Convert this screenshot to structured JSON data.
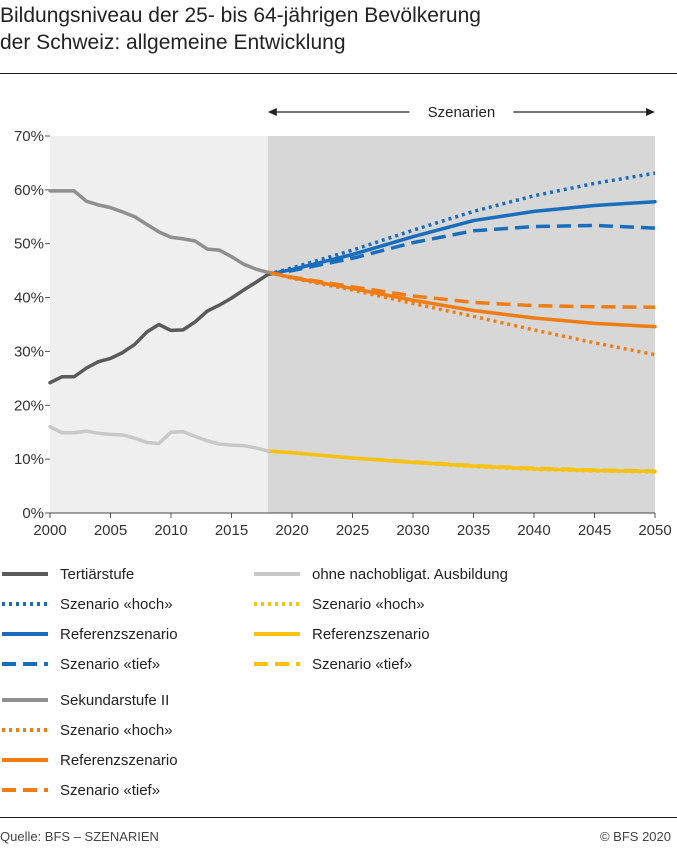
{
  "title_lines": [
    "Bildungsniveau der 25- bis 64-jährigen Bevölkerung",
    "der Schweiz: allgemeine Entwicklung"
  ],
  "source": "Quelle: BFS – SZENARIEN",
  "copyright": "© BFS 2020",
  "colors": {
    "tertiary": "#5a5a5a",
    "secondary": "#8f8f8f",
    "compulsory": "#c8c8c8",
    "blue": "#1a6dbd",
    "orange": "#f07d14",
    "yellow": "#f7c214",
    "historic_bg": "#efefef",
    "scenario_bg": "#d7d7d7"
  },
  "chart_data": {
    "type": "line",
    "x_range": [
      2000,
      2050
    ],
    "ylim": [
      0,
      70
    ],
    "y_ticks": [
      0,
      10,
      20,
      30,
      40,
      50,
      60,
      70
    ],
    "y_tick_labels": [
      "0%",
      "10%",
      "20%",
      "30%",
      "40%",
      "50%",
      "60%",
      "70%"
    ],
    "x_ticks": [
      2000,
      2005,
      2010,
      2015,
      2020,
      2025,
      2030,
      2035,
      2040,
      2045,
      2050
    ],
    "x_tick_labels": [
      "2000",
      "2005",
      "2010",
      "2015",
      "2020",
      "2025",
      "2030",
      "2035",
      "2040",
      "2045",
      "2050"
    ],
    "scenario_start": 2018,
    "scenario_label": "Szenarien",
    "series": [
      {
        "name": "Tertiärstufe",
        "group": "tertiary",
        "style": "solid",
        "x": [
          2000,
          2001,
          2002,
          2003,
          2004,
          2005,
          2006,
          2007,
          2008,
          2009,
          2010,
          2011,
          2012,
          2013,
          2014,
          2015,
          2016,
          2017,
          2018
        ],
        "y": [
          24.2,
          25.3,
          25.3,
          26.9,
          28.1,
          28.7,
          29.8,
          31.3,
          33.6,
          35.0,
          33.9,
          34.0,
          35.5,
          37.5,
          38.6,
          39.9,
          41.4,
          42.8,
          44.3
        ]
      },
      {
        "name": "Szenario «hoch»",
        "group": "tertiary",
        "style": "dotted",
        "x": [
          2018,
          2020,
          2025,
          2030,
          2035,
          2040,
          2045,
          2050
        ],
        "y": [
          44.3,
          45.5,
          48.8,
          52.5,
          56.0,
          58.9,
          61.2,
          63.1
        ]
      },
      {
        "name": "Referenzszenario",
        "group": "tertiary",
        "style": "solid",
        "x": [
          2018,
          2020,
          2025,
          2030,
          2035,
          2040,
          2045,
          2050
        ],
        "y": [
          44.3,
          45.2,
          48.0,
          51.3,
          54.3,
          56.0,
          57.1,
          57.8
        ]
      },
      {
        "name": "Szenario «tief»",
        "group": "tertiary",
        "style": "dashed",
        "x": [
          2018,
          2020,
          2025,
          2030,
          2035,
          2040,
          2045,
          2050
        ],
        "y": [
          44.3,
          45.0,
          47.3,
          50.2,
          52.4,
          53.2,
          53.4,
          52.9
        ]
      },
      {
        "name": "Sekundarstufe II",
        "group": "secondary",
        "style": "solid",
        "x": [
          2000,
          2001,
          2002,
          2003,
          2004,
          2005,
          2006,
          2007,
          2008,
          2009,
          2010,
          2011,
          2012,
          2013,
          2014,
          2015,
          2016,
          2017,
          2018
        ],
        "y": [
          59.8,
          59.8,
          59.8,
          57.9,
          57.2,
          56.7,
          55.9,
          55.0,
          53.6,
          52.2,
          51.2,
          50.9,
          50.5,
          49.0,
          48.8,
          47.6,
          46.2,
          45.3,
          44.7
        ]
      },
      {
        "name": "Szenario «hoch»",
        "group": "secondary",
        "style": "dotted",
        "x": [
          2018,
          2020,
          2025,
          2030,
          2035,
          2040,
          2045,
          2050
        ],
        "y": [
          44.7,
          43.6,
          41.4,
          38.9,
          36.5,
          34.0,
          31.6,
          29.4
        ]
      },
      {
        "name": "Referenzszenario",
        "group": "secondary",
        "style": "solid",
        "x": [
          2018,
          2020,
          2025,
          2030,
          2035,
          2040,
          2045,
          2050
        ],
        "y": [
          44.7,
          43.7,
          41.7,
          39.5,
          37.6,
          36.2,
          35.2,
          34.6
        ]
      },
      {
        "name": "Szenario «tief»",
        "group": "secondary",
        "style": "dashed",
        "x": [
          2018,
          2020,
          2025,
          2030,
          2035,
          2040,
          2045,
          2050
        ],
        "y": [
          44.7,
          43.8,
          42.0,
          40.3,
          39.1,
          38.5,
          38.3,
          38.2
        ]
      },
      {
        "name": "ohne nachobligat. Ausbildung",
        "group": "compulsory",
        "style": "solid",
        "x": [
          2000,
          2001,
          2002,
          2003,
          2004,
          2005,
          2006,
          2007,
          2008,
          2009,
          2010,
          2011,
          2012,
          2013,
          2014,
          2015,
          2016,
          2017,
          2018
        ],
        "y": [
          16.0,
          14.9,
          14.9,
          15.2,
          14.8,
          14.6,
          14.5,
          13.9,
          13.1,
          12.9,
          15.0,
          15.1,
          14.2,
          13.4,
          12.8,
          12.6,
          12.5,
          12.1,
          11.5
        ]
      },
      {
        "name": "Szenario «hoch»",
        "group": "compulsory",
        "style": "dotted",
        "x": [
          2018,
          2020,
          2025,
          2030,
          2035,
          2040,
          2045,
          2050
        ],
        "y": [
          11.5,
          11.2,
          10.2,
          9.4,
          8.6,
          8.1,
          7.8,
          7.6
        ]
      },
      {
        "name": "Referenzszenario",
        "group": "compulsory",
        "style": "solid",
        "x": [
          2018,
          2020,
          2025,
          2030,
          2035,
          2040,
          2045,
          2050
        ],
        "y": [
          11.5,
          11.2,
          10.2,
          9.4,
          8.7,
          8.2,
          7.9,
          7.7
        ]
      },
      {
        "name": "Szenario «tief»",
        "group": "compulsory",
        "style": "dashed",
        "x": [
          2018,
          2020,
          2025,
          2030,
          2035,
          2040,
          2045,
          2050
        ],
        "y": [
          11.5,
          11.2,
          10.2,
          9.5,
          8.8,
          8.3,
          8.0,
          7.8
        ]
      }
    ]
  },
  "legend": {
    "columns": [
      [
        {
          "label": "Tertiärstufe",
          "color": "#5a5a5a",
          "style": "solid"
        },
        {
          "label": "Szenario «hoch»",
          "color": "#1a6dbd",
          "style": "dotted"
        },
        {
          "label": "Referenzszenario",
          "color": "#1a6dbd",
          "style": "solid"
        },
        {
          "label": "Szenario «tief»",
          "color": "#1a6dbd",
          "style": "dashed"
        },
        {
          "label": "Sekundarstufe II",
          "color": "#8f8f8f",
          "style": "solid"
        },
        {
          "label": "Szenario «hoch»",
          "color": "#f07d14",
          "style": "dotted"
        },
        {
          "label": "Referenzszenario",
          "color": "#f07d14",
          "style": "solid"
        },
        {
          "label": "Szenario «tief»",
          "color": "#f07d14",
          "style": "dashed"
        }
      ],
      [
        {
          "label": "ohne nachobligat. Ausbildung",
          "color": "#c8c8c8",
          "style": "solid"
        },
        {
          "label": "Szenario «hoch»",
          "color": "#f7c214",
          "style": "dotted"
        },
        {
          "label": "Referenzszenario",
          "color": "#f7c214",
          "style": "solid"
        },
        {
          "label": "Szenario «tief»",
          "color": "#f7c214",
          "style": "dashed"
        }
      ]
    ]
  }
}
